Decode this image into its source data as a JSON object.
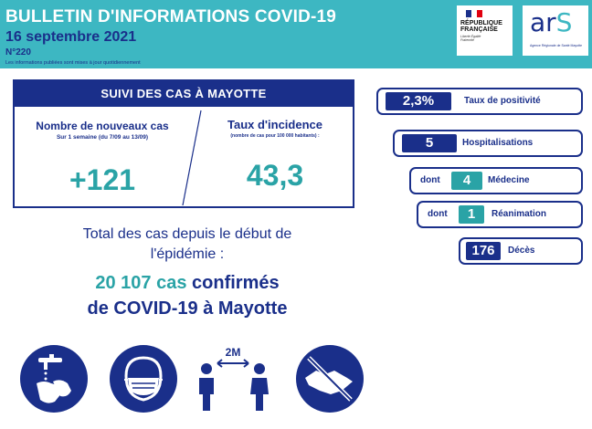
{
  "header": {
    "title": "BULLETIN D'INFORMATIONS COVID-19",
    "date": "16 septembre 2021",
    "number": "N°220",
    "note": "Les informations publiées sont mises à jour quotidiennement"
  },
  "logos": {
    "republique_line1": "RÉPUBLIQUE",
    "republique_line2": "FRANÇAISE",
    "motto": "Liberté Égalité Fraternité",
    "ars_word_a": "ar",
    "ars_word_s": "S",
    "ars_sub": "Agence Régionale de Santé Mayotte"
  },
  "cases": {
    "title": "SUIVI DES CAS À MAYOTTE",
    "new_label": "Nombre de nouveaux cas",
    "new_sub": "Sur 1 semaine (du 7/09 au 13/09)",
    "new_value": "+121",
    "incidence_label": "Taux d'incidence",
    "incidence_sub": "(nombre de cas pour 100 000 habitants) :",
    "incidence_value": "43,3"
  },
  "total": {
    "line1": "Total des cas depuis le début de",
    "line2": "l'épidémie :",
    "count": "20 107 cas",
    "confirmed": " confirmés",
    "line4": "de COVID-19 à Mayotte"
  },
  "indicators": {
    "positivity": {
      "value": "2,3%",
      "label": "Taux de positivité"
    },
    "hospital": {
      "value": "5",
      "label": "Hospitalisations"
    },
    "medicine": {
      "prefix": "dont",
      "value": "4",
      "label": "Médecine"
    },
    "icu": {
      "prefix": "dont",
      "value": "1",
      "label": "Réanimation"
    },
    "deaths": {
      "value": "176",
      "label": "Décès"
    }
  },
  "icons": [
    "hand-washing-icon",
    "mask-icon",
    "distance-2m-icon",
    "no-handshake-icon"
  ],
  "icon_text": {
    "distance": "2M"
  },
  "colors": {
    "teal": "#3db7c2",
    "navy": "#1a2f8a",
    "value_teal": "#2aa3a6"
  }
}
